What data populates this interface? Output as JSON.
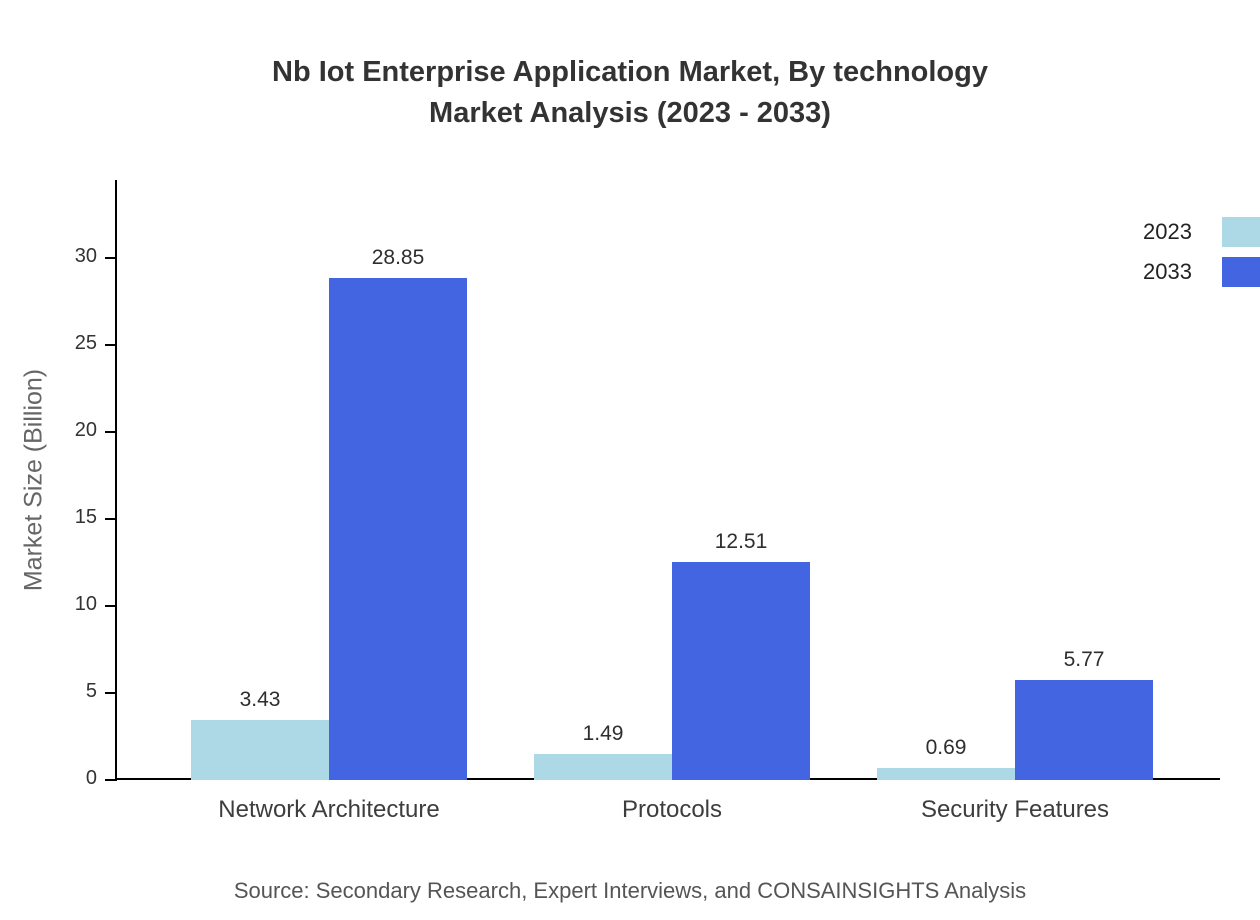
{
  "source_note": "Source: Secondary Research, Expert Interviews, and CONSAINSIGHTS Analysis",
  "chart_data": {
    "type": "bar",
    "title": "Nb Iot Enterprise Application Market, By technology\nMarket Analysis (2023 - 2033)",
    "categories": [
      "Network Architecture",
      "Protocols",
      "Security Features"
    ],
    "series": [
      {
        "name": "2023",
        "color": "#add8e6",
        "values": [
          3.43,
          1.49,
          0.69
        ]
      },
      {
        "name": "2033",
        "color": "#4365e1",
        "values": [
          28.85,
          12.51,
          5.77
        ]
      }
    ],
    "xlabel": "",
    "ylabel": "Market Size (Billion)",
    "yticks": [
      0,
      5,
      10,
      15,
      20,
      25,
      30
    ],
    "ylim": [
      0,
      34.5
    ],
    "grid": false,
    "legend_position": "top-right"
  }
}
